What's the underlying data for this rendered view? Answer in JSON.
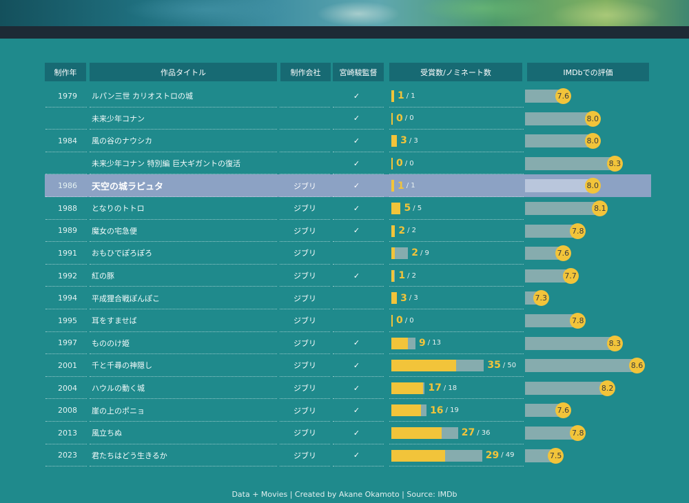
{
  "headers": {
    "year": "制作年",
    "title": "作品タイトル",
    "studio": "制作会社",
    "director": "宮崎駿監督",
    "awards": "受賞数/ノミネート数",
    "imdb": "IMDbでの評価"
  },
  "footer": "Data + Movies  | Created by Akane Okamoto | Source: IMDb",
  "colors": {
    "background": "#1f8a8c",
    "wins": "#f2c43a",
    "nominations": "#86acae",
    "highlight": "#8ca2c4"
  },
  "chart_data": {
    "type": "table",
    "highlighted_title": "天空の城ラピュタ",
    "rows": [
      {
        "year": "1979",
        "title": "ルパン三世 カリオストロの城",
        "studio": "",
        "director": "✓",
        "wins": 1,
        "noms": 1,
        "imdb": 7.6
      },
      {
        "year": "",
        "title": "未来少年コナン",
        "studio": "",
        "director": "✓",
        "wins": 0,
        "noms": 0,
        "imdb": 8.0
      },
      {
        "year": "1984",
        "title": "風の谷のナウシカ",
        "studio": "",
        "director": "✓",
        "wins": 3,
        "noms": 3,
        "imdb": 8.0
      },
      {
        "year": "",
        "title": "未来少年コナン 特別編 巨大ギガントの復活",
        "studio": "",
        "director": "✓",
        "wins": 0,
        "noms": 0,
        "imdb": 8.3
      },
      {
        "year": "1986",
        "title": "天空の城ラピュタ",
        "studio": "ジブリ",
        "director": "✓",
        "wins": 1,
        "noms": 1,
        "imdb": 8.0
      },
      {
        "year": "1988",
        "title": "となりのトトロ",
        "studio": "ジブリ",
        "director": "✓",
        "wins": 5,
        "noms": 5,
        "imdb": 8.1
      },
      {
        "year": "1989",
        "title": "魔女の宅急便",
        "studio": "ジブリ",
        "director": "✓",
        "wins": 2,
        "noms": 2,
        "imdb": 7.8
      },
      {
        "year": "1991",
        "title": "おもひでぽろぽろ",
        "studio": "ジブリ",
        "director": "",
        "wins": 2,
        "noms": 9,
        "imdb": 7.6
      },
      {
        "year": "1992",
        "title": "紅の豚",
        "studio": "ジブリ",
        "director": "✓",
        "wins": 1,
        "noms": 2,
        "imdb": 7.7
      },
      {
        "year": "1994",
        "title": "平成狸合戦ぽんぽこ",
        "studio": "ジブリ",
        "director": "",
        "wins": 3,
        "noms": 3,
        "imdb": 7.3
      },
      {
        "year": "1995",
        "title": "耳をすませば",
        "studio": "ジブリ",
        "director": "",
        "wins": 0,
        "noms": 0,
        "imdb": 7.8
      },
      {
        "year": "1997",
        "title": "もののけ姫",
        "studio": "ジブリ",
        "director": "✓",
        "wins": 9,
        "noms": 13,
        "imdb": 8.3
      },
      {
        "year": "2001",
        "title": "千と千尋の神隠し",
        "studio": "ジブリ",
        "director": "✓",
        "wins": 35,
        "noms": 50,
        "imdb": 8.6
      },
      {
        "year": "2004",
        "title": "ハウルの動く城",
        "studio": "ジブリ",
        "director": "✓",
        "wins": 17,
        "noms": 18,
        "imdb": 8.2
      },
      {
        "year": "2008",
        "title": "崖の上のポニョ",
        "studio": "ジブリ",
        "director": "✓",
        "wins": 16,
        "noms": 19,
        "imdb": 7.6
      },
      {
        "year": "2013",
        "title": "風立ちぬ",
        "studio": "ジブリ",
        "director": "✓",
        "wins": 27,
        "noms": 36,
        "imdb": 7.8
      },
      {
        "year": "2023",
        "title": "君たちはどう生きるか",
        "studio": "ジブリ",
        "director": "✓",
        "wins": 29,
        "noms": 49,
        "imdb": 7.5
      }
    ],
    "awards_scale_max": 50,
    "imdb_range": [
      7.2,
      8.6
    ]
  }
}
